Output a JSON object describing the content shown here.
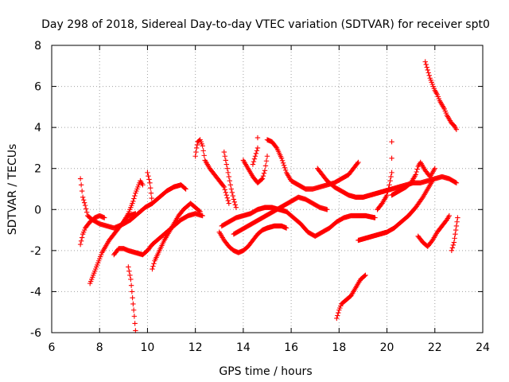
{
  "chart_data": {
    "type": "scatter",
    "title": "Day 298 of 2018, Sidereal Day-to-day VTEC variation (SDTVAR) for receiver spt0",
    "xlabel": "GPS time / hours",
    "ylabel": "SDTVAR / TECUs",
    "xlim": [
      6,
      24
    ],
    "ylim": [
      -6,
      8
    ],
    "x_ticks": [
      6,
      8,
      10,
      12,
      14,
      16,
      18,
      20,
      22,
      24
    ],
    "x_tick_labels": [
      "6",
      "8",
      "10",
      "12",
      "14",
      "16",
      "18",
      "20",
      "22",
      "24"
    ],
    "y_ticks": [
      -6,
      -4,
      -2,
      0,
      2,
      4,
      6,
      8
    ],
    "y_tick_labels": [
      "-6",
      "-4",
      "-2",
      "0",
      "2",
      "4",
      "6",
      "8"
    ],
    "grid": true,
    "marker": "+",
    "color": "#ff0000",
    "series": [
      {
        "name": "track-1",
        "points": [
          [
            7.2,
            1.5
          ],
          [
            7.3,
            0.6
          ],
          [
            7.4,
            0.2
          ],
          [
            7.5,
            -0.3
          ],
          [
            7.7,
            -0.5
          ],
          [
            8.0,
            -0.7
          ],
          [
            8.3,
            -0.8
          ],
          [
            8.6,
            -0.9
          ],
          [
            9.0,
            -0.7
          ],
          [
            9.3,
            -0.5
          ],
          [
            9.6,
            -0.2
          ],
          [
            9.9,
            0.1
          ],
          [
            10.2,
            0.3
          ],
          [
            10.5,
            0.6
          ],
          [
            10.8,
            0.9
          ],
          [
            11.1,
            1.1
          ],
          [
            11.4,
            1.2
          ],
          [
            11.6,
            1.0
          ]
        ]
      },
      {
        "name": "track-2",
        "points": [
          [
            7.2,
            -1.7
          ],
          [
            7.3,
            -1.2
          ],
          [
            7.4,
            -0.9
          ],
          [
            7.6,
            -0.6
          ],
          [
            7.8,
            -0.4
          ],
          [
            8.0,
            -0.3
          ],
          [
            8.2,
            -0.4
          ]
        ]
      },
      {
        "name": "track-3",
        "points": [
          [
            7.6,
            -3.6
          ],
          [
            7.7,
            -3.3
          ],
          [
            7.8,
            -3.0
          ],
          [
            7.9,
            -2.7
          ],
          [
            8.0,
            -2.4
          ],
          [
            8.1,
            -2.1
          ],
          [
            8.2,
            -1.9
          ],
          [
            8.4,
            -1.5
          ],
          [
            8.6,
            -1.2
          ],
          [
            8.8,
            -0.9
          ],
          [
            9.0,
            -0.6
          ],
          [
            9.2,
            -0.3
          ],
          [
            9.5,
            -0.2
          ]
        ]
      },
      {
        "name": "track-4",
        "points": [
          [
            8.6,
            -2.2
          ],
          [
            8.8,
            -1.9
          ],
          [
            9.0,
            -1.9
          ],
          [
            9.2,
            -2.0
          ],
          [
            9.5,
            -2.1
          ],
          [
            9.8,
            -2.2
          ],
          [
            10.0,
            -2.0
          ],
          [
            10.2,
            -1.7
          ],
          [
            10.5,
            -1.4
          ],
          [
            10.8,
            -1.1
          ],
          [
            11.1,
            -0.8
          ],
          [
            11.4,
            -0.5
          ],
          [
            11.7,
            -0.3
          ],
          [
            12.0,
            -0.2
          ],
          [
            12.3,
            -0.3
          ]
        ]
      },
      {
        "name": "track-5",
        "points": [
          [
            9.0,
            -0.6
          ],
          [
            9.2,
            -0.2
          ],
          [
            9.4,
            0.4
          ],
          [
            9.5,
            0.8
          ],
          [
            9.6,
            1.1
          ],
          [
            9.7,
            1.4
          ],
          [
            9.8,
            1.2
          ]
        ]
      },
      {
        "name": "track-6",
        "points": [
          [
            9.2,
            -2.8
          ],
          [
            9.3,
            -3.4
          ],
          [
            9.35,
            -4.0
          ],
          [
            9.4,
            -4.6
          ],
          [
            9.45,
            -5.2
          ],
          [
            9.5,
            -5.9
          ]
        ]
      },
      {
        "name": "track-7",
        "points": [
          [
            10.2,
            -2.9
          ],
          [
            10.3,
            -2.5
          ],
          [
            10.5,
            -2.0
          ],
          [
            10.7,
            -1.5
          ],
          [
            10.9,
            -1.1
          ],
          [
            11.1,
            -0.7
          ],
          [
            11.3,
            -0.3
          ],
          [
            11.5,
            0.0
          ],
          [
            11.8,
            0.3
          ],
          [
            12.0,
            0.1
          ],
          [
            12.2,
            -0.1
          ]
        ]
      },
      {
        "name": "track-8",
        "points": [
          [
            10.0,
            1.8
          ],
          [
            10.1,
            1.3
          ],
          [
            10.15,
            0.8
          ],
          [
            10.2,
            0.3
          ]
        ]
      },
      {
        "name": "track-9",
        "points": [
          [
            12.0,
            2.6
          ],
          [
            12.05,
            3.0
          ],
          [
            12.1,
            3.3
          ],
          [
            12.2,
            3.4
          ],
          [
            12.3,
            3.1
          ],
          [
            12.4,
            2.4
          ],
          [
            12.6,
            2.0
          ],
          [
            12.8,
            1.7
          ],
          [
            13.0,
            1.4
          ],
          [
            13.2,
            1.1
          ],
          [
            13.3,
            0.7
          ],
          [
            13.4,
            0.3
          ]
        ]
      },
      {
        "name": "track-10",
        "points": [
          [
            13.0,
            -1.1
          ],
          [
            13.2,
            -1.5
          ],
          [
            13.4,
            -1.8
          ],
          [
            13.6,
            -2.0
          ],
          [
            13.8,
            -2.1
          ],
          [
            14.0,
            -2.0
          ],
          [
            14.2,
            -1.8
          ],
          [
            14.4,
            -1.5
          ],
          [
            14.6,
            -1.2
          ],
          [
            14.8,
            -1.0
          ],
          [
            15.0,
            -0.9
          ],
          [
            15.3,
            -0.8
          ],
          [
            15.6,
            -0.8
          ],
          [
            15.8,
            -0.9
          ]
        ]
      },
      {
        "name": "track-11",
        "points": [
          [
            13.1,
            -0.8
          ],
          [
            13.4,
            -0.6
          ],
          [
            13.7,
            -0.4
          ],
          [
            14.0,
            -0.3
          ],
          [
            14.3,
            -0.2
          ],
          [
            14.6,
            0.0
          ],
          [
            14.9,
            0.1
          ],
          [
            15.2,
            0.1
          ],
          [
            15.5,
            0.0
          ],
          [
            15.8,
            -0.1
          ],
          [
            16.1,
            -0.4
          ],
          [
            16.4,
            -0.7
          ],
          [
            16.7,
            -1.1
          ],
          [
            17.0,
            -1.3
          ],
          [
            17.3,
            -1.1
          ],
          [
            17.6,
            -0.9
          ],
          [
            17.9,
            -0.6
          ],
          [
            18.2,
            -0.4
          ],
          [
            18.5,
            -0.3
          ],
          [
            18.8,
            -0.3
          ],
          [
            19.1,
            -0.3
          ],
          [
            19.5,
            -0.4
          ]
        ]
      },
      {
        "name": "track-12",
        "points": [
          [
            13.6,
            -1.2
          ],
          [
            13.9,
            -1.0
          ],
          [
            14.2,
            -0.8
          ],
          [
            14.5,
            -0.6
          ],
          [
            14.8,
            -0.4
          ],
          [
            15.1,
            -0.2
          ],
          [
            15.4,
            0.0
          ],
          [
            15.7,
            0.2
          ],
          [
            16.0,
            0.4
          ],
          [
            16.3,
            0.6
          ],
          [
            16.6,
            0.5
          ],
          [
            16.9,
            0.3
          ],
          [
            17.2,
            0.1
          ],
          [
            17.5,
            0.0
          ]
        ]
      },
      {
        "name": "track-13",
        "points": [
          [
            13.2,
            2.8
          ],
          [
            13.3,
            2.2
          ],
          [
            13.4,
            1.6
          ],
          [
            13.5,
            1.0
          ],
          [
            13.6,
            0.5
          ],
          [
            13.7,
            0.1
          ]
        ]
      },
      {
        "name": "track-14",
        "points": [
          [
            14.0,
            2.4
          ],
          [
            14.2,
            2.0
          ],
          [
            14.4,
            1.6
          ],
          [
            14.6,
            1.3
          ],
          [
            14.8,
            1.5
          ],
          [
            14.9,
            1.9
          ],
          [
            15.0,
            2.6
          ],
          [
            15.0,
            3.4
          ],
          [
            15.2,
            3.3
          ],
          [
            15.4,
            3.0
          ],
          [
            15.6,
            2.5
          ],
          [
            15.8,
            1.8
          ],
          [
            16.0,
            1.4
          ],
          [
            16.3,
            1.2
          ],
          [
            16.6,
            1.0
          ],
          [
            16.9,
            1.0
          ],
          [
            17.2,
            1.1
          ],
          [
            17.5,
            1.2
          ],
          [
            17.8,
            1.3
          ],
          [
            18.1,
            1.5
          ],
          [
            18.4,
            1.7
          ],
          [
            18.6,
            2.0
          ],
          [
            18.8,
            2.3
          ]
        ]
      },
      {
        "name": "track-15",
        "points": [
          [
            14.4,
            2.2
          ],
          [
            14.5,
            2.6
          ],
          [
            14.6,
            3.0
          ],
          [
            14.6,
            3.5
          ]
        ]
      },
      {
        "name": "track-16",
        "points": [
          [
            17.1,
            2.0
          ],
          [
            17.3,
            1.7
          ],
          [
            17.5,
            1.4
          ],
          [
            17.8,
            1.1
          ],
          [
            18.1,
            0.9
          ],
          [
            18.4,
            0.7
          ],
          [
            18.7,
            0.6
          ],
          [
            19.0,
            0.6
          ],
          [
            19.3,
            0.7
          ],
          [
            19.6,
            0.8
          ],
          [
            19.9,
            0.9
          ],
          [
            20.2,
            1.0
          ],
          [
            20.5,
            1.1
          ],
          [
            20.8,
            1.2
          ],
          [
            21.1,
            1.3
          ],
          [
            21.4,
            1.3
          ],
          [
            21.7,
            1.4
          ],
          [
            22.0,
            1.5
          ],
          [
            22.3,
            1.6
          ],
          [
            22.6,
            1.5
          ],
          [
            22.9,
            1.3
          ]
        ]
      },
      {
        "name": "track-17",
        "points": [
          [
            17.9,
            -5.3
          ],
          [
            18.0,
            -4.9
          ],
          [
            18.1,
            -4.6
          ],
          [
            18.3,
            -4.4
          ],
          [
            18.5,
            -4.2
          ],
          [
            18.7,
            -3.8
          ],
          [
            18.9,
            -3.4
          ],
          [
            19.1,
            -3.2
          ]
        ]
      },
      {
        "name": "track-18",
        "points": [
          [
            18.8,
            -1.5
          ],
          [
            19.1,
            -1.4
          ],
          [
            19.4,
            -1.3
          ],
          [
            19.7,
            -1.2
          ],
          [
            20.0,
            -1.1
          ],
          [
            20.3,
            -0.9
          ],
          [
            20.6,
            -0.6
          ],
          [
            20.9,
            -0.3
          ],
          [
            21.2,
            0.1
          ],
          [
            21.5,
            0.6
          ],
          [
            21.7,
            1.0
          ],
          [
            21.9,
            1.4
          ]
        ]
      },
      {
        "name": "track-19",
        "points": [
          [
            19.6,
            0.0
          ],
          [
            19.8,
            0.3
          ],
          [
            20.0,
            0.7
          ],
          [
            20.1,
            1.2
          ],
          [
            20.2,
            1.8
          ],
          [
            20.2,
            2.5
          ],
          [
            20.2,
            3.3
          ]
        ]
      },
      {
        "name": "track-20",
        "points": [
          [
            20.2,
            0.7
          ],
          [
            20.5,
            0.9
          ],
          [
            20.8,
            1.1
          ],
          [
            21.0,
            1.3
          ],
          [
            21.2,
            1.7
          ],
          [
            21.3,
            2.1
          ],
          [
            21.4,
            2.3
          ],
          [
            21.6,
            1.9
          ],
          [
            21.8,
            1.6
          ],
          [
            22.0,
            2.0
          ]
        ]
      },
      {
        "name": "track-21",
        "points": [
          [
            21.3,
            -1.3
          ],
          [
            21.5,
            -1.6
          ],
          [
            21.7,
            -1.8
          ],
          [
            21.9,
            -1.5
          ],
          [
            22.1,
            -1.1
          ],
          [
            22.3,
            -0.8
          ],
          [
            22.5,
            -0.5
          ],
          [
            22.6,
            -0.3
          ]
        ]
      },
      {
        "name": "track-22",
        "points": [
          [
            21.6,
            7.2
          ],
          [
            21.7,
            6.8
          ],
          [
            21.8,
            6.4
          ],
          [
            21.9,
            6.1
          ],
          [
            22.0,
            5.8
          ],
          [
            22.1,
            5.6
          ],
          [
            22.2,
            5.3
          ],
          [
            22.3,
            5.1
          ],
          [
            22.4,
            4.9
          ],
          [
            22.5,
            4.6
          ],
          [
            22.6,
            4.4
          ],
          [
            22.7,
            4.2
          ],
          [
            22.8,
            4.1
          ],
          [
            22.9,
            3.9
          ]
        ]
      },
      {
        "name": "track-23",
        "points": [
          [
            22.7,
            -2.0
          ],
          [
            22.8,
            -1.6
          ],
          [
            22.85,
            -1.2
          ],
          [
            22.9,
            -0.8
          ],
          [
            22.95,
            -0.4
          ]
        ]
      }
    ]
  }
}
